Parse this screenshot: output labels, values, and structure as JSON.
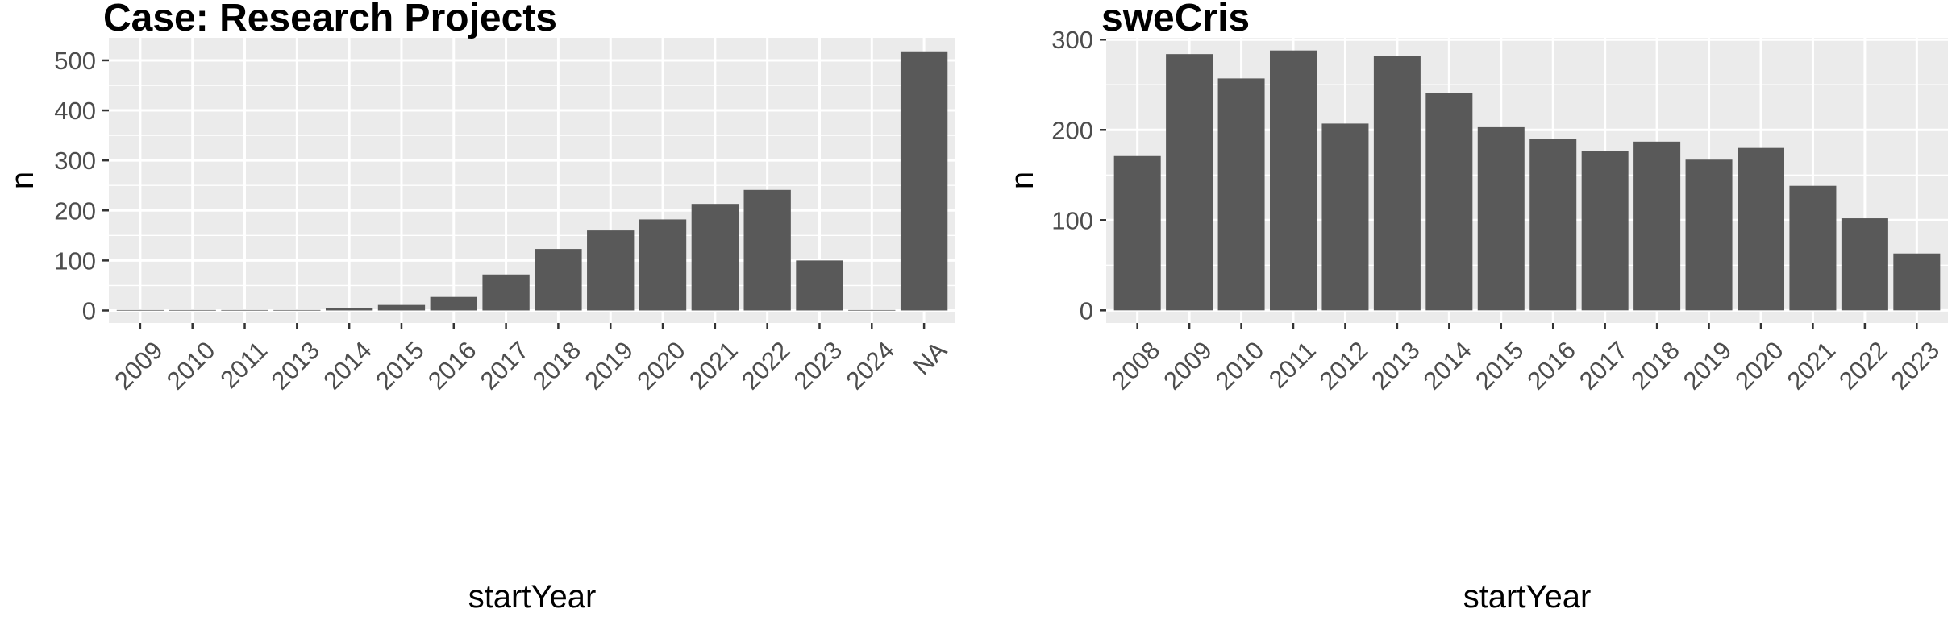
{
  "chart_data": [
    {
      "type": "bar",
      "title": "Case: Research Projects",
      "xlabel": "startYear",
      "ylabel": "n",
      "categories": [
        "2009",
        "2010",
        "2011",
        "2013",
        "2014",
        "2015",
        "2016",
        "2017",
        "2018",
        "2019",
        "2020",
        "2021",
        "2022",
        "2023",
        "2024",
        "NA"
      ],
      "values": [
        1,
        1,
        1,
        1,
        5,
        11,
        27,
        72,
        123,
        160,
        182,
        213,
        241,
        100,
        1,
        518
      ],
      "ylim": [
        -25,
        545
      ],
      "yticks": [
        0,
        100,
        200,
        300,
        400,
        500
      ],
      "grid": true,
      "bar_color": "#595959",
      "panel_color": "#ebebeb"
    },
    {
      "type": "bar",
      "title": "sweCris",
      "xlabel": "startYear",
      "ylabel": "n",
      "categories": [
        "2008",
        "2009",
        "2010",
        "2011",
        "2012",
        "2013",
        "2014",
        "2015",
        "2016",
        "2017",
        "2018",
        "2019",
        "2020",
        "2021",
        "2022",
        "2023"
      ],
      "values": [
        171,
        284,
        257,
        288,
        207,
        282,
        241,
        203,
        190,
        177,
        187,
        167,
        180,
        138,
        102,
        63
      ],
      "ylim": [
        -14,
        302
      ],
      "yticks": [
        0,
        100,
        200,
        300
      ],
      "grid": true,
      "bar_color": "#595959",
      "panel_color": "#ebebeb"
    }
  ]
}
